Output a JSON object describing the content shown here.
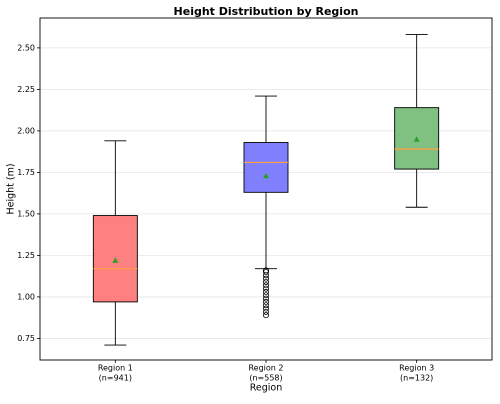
{
  "chart_data": {
    "type": "box",
    "title": "Height Distribution by Region",
    "x_label": "Region",
    "y_label": "Height (m)",
    "categories": [
      "Region 1",
      "Region 2",
      "Region 3"
    ],
    "category_sublabels": [
      "(n=941)",
      "(n=558)",
      "(n=132)"
    ],
    "boxes": [
      {
        "color": "#ff8080",
        "whisker_low": 0.71,
        "q1": 0.97,
        "median": 1.17,
        "q3": 1.49,
        "whisker_high": 1.94,
        "mean": 1.22,
        "outliers": []
      },
      {
        "color": "#8080ff",
        "whisker_low": 1.17,
        "q1": 1.63,
        "median": 1.81,
        "q3": 1.93,
        "whisker_high": 2.21,
        "mean": 1.73,
        "outliers": [
          1.16,
          1.15,
          1.13,
          1.11,
          1.09,
          1.07,
          1.05,
          1.03,
          1.01,
          0.99,
          0.97,
          0.95,
          0.93,
          0.91,
          0.89
        ]
      },
      {
        "color": "#80c080",
        "whisker_low": 1.54,
        "q1": 1.77,
        "median": 1.89,
        "q3": 2.14,
        "whisker_high": 2.58,
        "mean": 1.95,
        "outliers": []
      }
    ],
    "median_color": "#ff9f40",
    "mean_color": "#2ca02c",
    "ylim": [
      0.62,
      2.68
    ],
    "yticks": [
      {
        "value": 0.75,
        "label": "0.75"
      },
      {
        "value": 1.0,
        "label": "1.00"
      },
      {
        "value": 1.25,
        "label": "1.25"
      },
      {
        "value": 1.5,
        "label": "1.50"
      },
      {
        "value": 1.75,
        "label": "1.75"
      },
      {
        "value": 2.0,
        "label": "2.00"
      },
      {
        "value": 2.25,
        "label": "2.25"
      },
      {
        "value": 2.5,
        "label": "2.50"
      }
    ],
    "grid": true
  }
}
